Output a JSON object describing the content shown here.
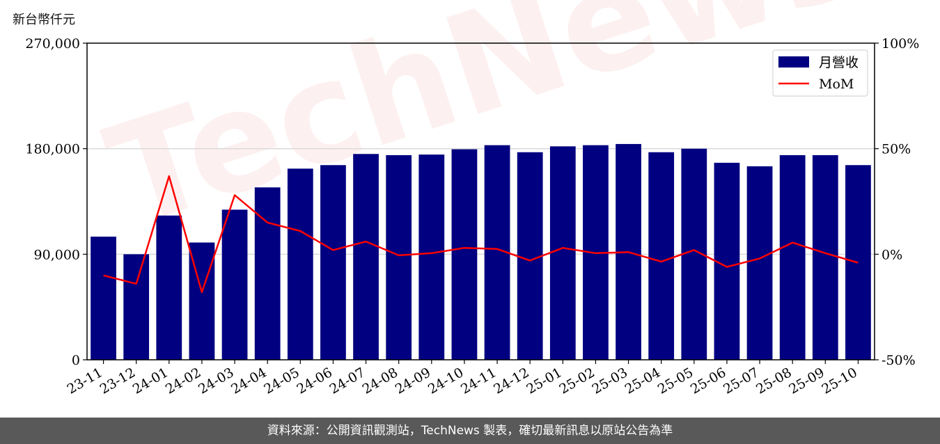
{
  "unit_label": "新台幣仟元",
  "watermark_text": "TechNews",
  "footer_text": "資料來源：公開資訊觀測站，TechNews 製表，確切最新訊息以原站公告為準",
  "colors": {
    "bar": "#000080",
    "line": "#ff0000",
    "grid": "#d9d9d9",
    "footer_bg": "#595959"
  },
  "chart_data": {
    "type": "bar",
    "categories": [
      "23-11",
      "23-12",
      "24-01",
      "24-02",
      "24-03",
      "24-04",
      "24-05",
      "24-06",
      "24-07",
      "24-08",
      "24-09",
      "24-10",
      "24-11",
      "24-12",
      "25-01",
      "25-02",
      "25-03",
      "25-04",
      "25-05",
      "25-06",
      "25-07",
      "25-08",
      "25-09",
      "25-10"
    ],
    "series": [
      {
        "name": "月營收",
        "axis": "left",
        "type": "bar",
        "values": [
          105000,
          90000,
          123000,
          100000,
          128000,
          147000,
          163000,
          166000,
          175500,
          174500,
          175000,
          179500,
          183000,
          177000,
          182000,
          183000,
          184000,
          177000,
          180000,
          168000,
          165000,
          174500,
          174500,
          166000
        ]
      },
      {
        "name": "MoM",
        "axis": "right",
        "type": "line",
        "values": [
          -10,
          -14,
          37,
          -18,
          28,
          15,
          11,
          2,
          6,
          -0.5,
          0.5,
          3,
          2.5,
          -3,
          3,
          0.5,
          1,
          -3.5,
          2,
          -6,
          -2,
          5.5,
          0.5,
          -4
        ]
      }
    ],
    "ylim": [
      0,
      270000
    ],
    "yticks": [
      "0",
      "90,000",
      "180,000",
      "270,000"
    ],
    "y2lim": [
      -50,
      100
    ],
    "y2ticks": [
      "-50%",
      "0%",
      "50%",
      "100%"
    ],
    "grid": true,
    "legend_position": "top-right"
  }
}
